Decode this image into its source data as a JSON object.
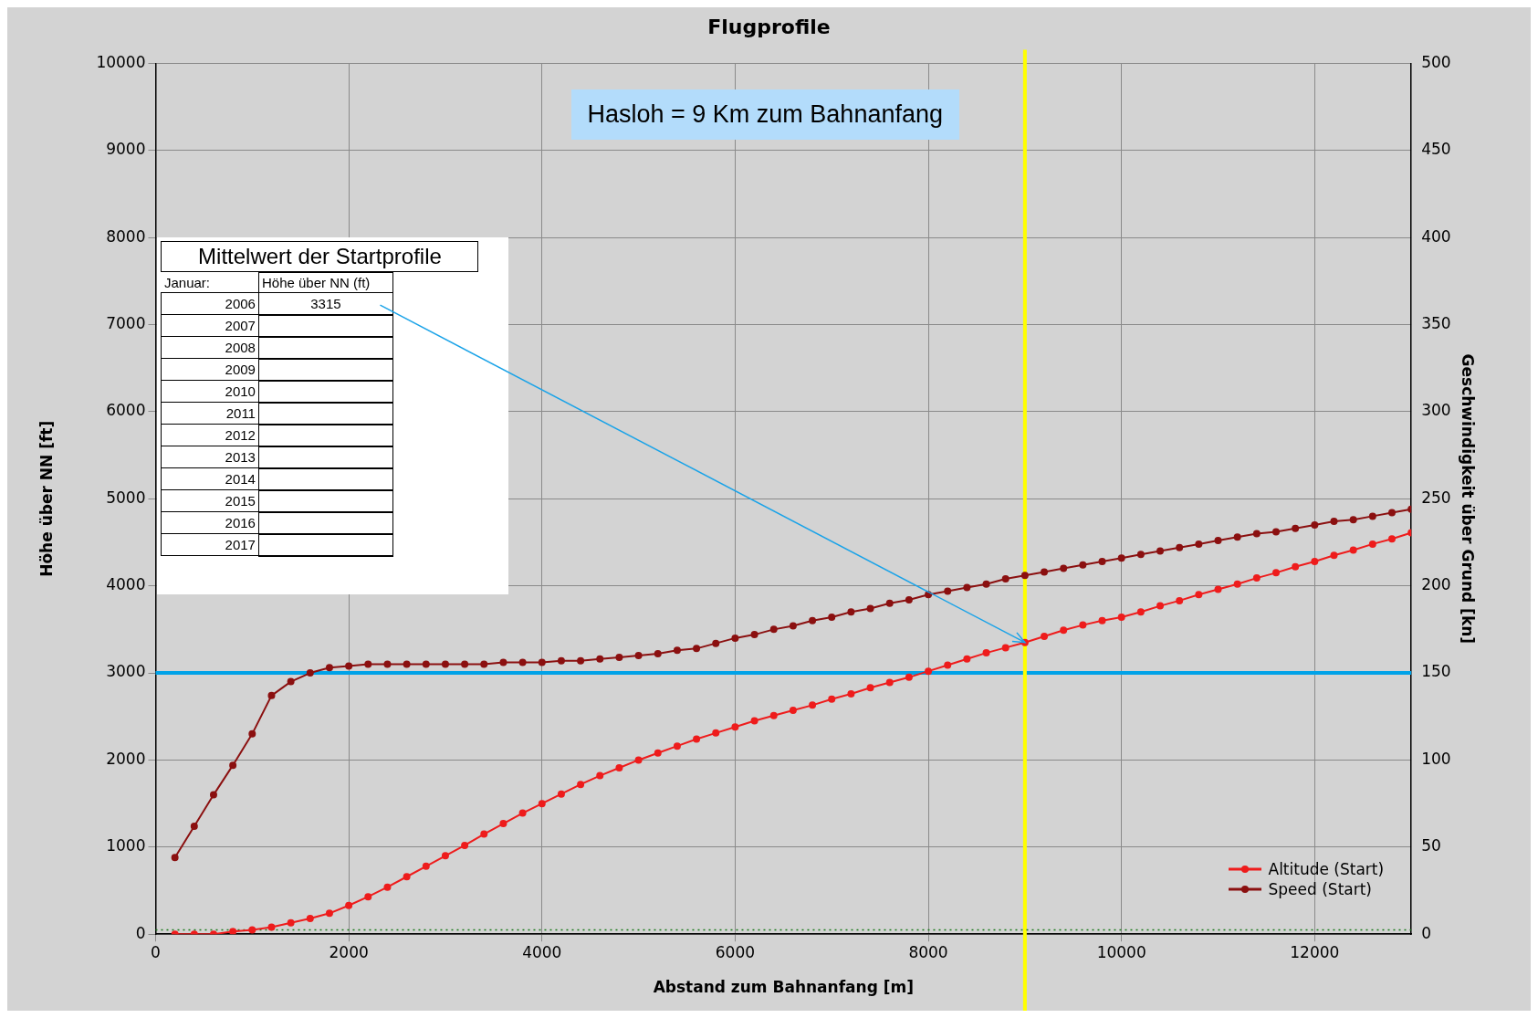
{
  "chart_data": {
    "type": "line",
    "title": "Flugprofile",
    "xlabel": "Abstand zum Bahnanfang [m]",
    "ylabel": "Höhe über NN [ft]",
    "y2label": "Geschwindigkeit über Grund [kn]",
    "xlim": [
      0,
      13000
    ],
    "xticks": [
      0,
      2000,
      4000,
      6000,
      8000,
      10000,
      12000
    ],
    "ylim": [
      0,
      10000
    ],
    "yticks": [
      0,
      1000,
      2000,
      3000,
      4000,
      5000,
      6000,
      7000,
      8000,
      9000,
      10000
    ],
    "y2lim": [
      0,
      500
    ],
    "y2ticks": [
      0,
      50,
      100,
      150,
      200,
      250,
      300,
      350,
      400,
      450,
      500
    ],
    "grid": true,
    "legend": "bottom right",
    "marker": "circle",
    "x": [
      200,
      400,
      600,
      800,
      1000,
      1200,
      1400,
      1600,
      1800,
      2000,
      2200,
      2400,
      2600,
      2800,
      3000,
      3200,
      3400,
      3600,
      3800,
      4000,
      4200,
      4400,
      4600,
      4800,
      5000,
      5200,
      5400,
      5600,
      5800,
      6000,
      6200,
      6400,
      6600,
      6800,
      7000,
      7200,
      7400,
      7600,
      7800,
      8000,
      8200,
      8400,
      8600,
      8800,
      9000,
      9200,
      9400,
      9600,
      9800,
      10000,
      10200,
      10400,
      10600,
      10800,
      11000,
      11200,
      11400,
      11600,
      11800,
      12000,
      12200,
      12400,
      12600,
      12800,
      13000
    ],
    "series": [
      {
        "name": "Altitude (Start)",
        "color": "#ee1c1c",
        "values": [
          0,
          0,
          0,
          30,
          50,
          80,
          130,
          180,
          240,
          330,
          430,
          540,
          660,
          780,
          900,
          1020,
          1150,
          1270,
          1390,
          1500,
          1610,
          1720,
          1820,
          1910,
          2000,
          2080,
          2160,
          2240,
          2310,
          2380,
          2450,
          2510,
          2570,
          2630,
          2700,
          2760,
          2830,
          2890,
          2950,
          3020,
          3090,
          3160,
          3230,
          3290,
          3350,
          3420,
          3490,
          3550,
          3600,
          3640,
          3700,
          3770,
          3830,
          3900,
          3960,
          4020,
          4090,
          4150,
          4220,
          4280,
          4350,
          4410,
          4480,
          4540,
          4610
        ]
      },
      {
        "name": "Speed (Start)",
        "color": "#8b1010",
        "axis": "y2",
        "values": [
          44,
          62,
          80,
          97,
          115,
          137,
          145,
          150,
          153,
          154,
          155,
          155,
          155,
          155,
          155,
          155,
          155,
          156,
          156,
          156,
          157,
          157,
          158,
          159,
          160,
          161,
          163,
          164,
          167,
          170,
          172,
          175,
          177,
          180,
          182,
          185,
          187,
          190,
          192,
          195,
          197,
          199,
          201,
          204,
          206,
          208,
          210,
          212,
          214,
          216,
          218,
          220,
          222,
          224,
          226,
          228,
          230,
          231,
          233,
          235,
          237,
          238,
          240,
          242,
          244
        ]
      }
    ],
    "ref_lines": [
      {
        "axis": "y",
        "value": 3000,
        "color": "#00a2e8"
      },
      {
        "axis": "x",
        "value": 9000,
        "color": "#ffff00"
      },
      {
        "axis": "y",
        "value": 50,
        "color": "#1a7a1a",
        "line_style": "dotted"
      }
    ],
    "annotations": [
      "Hasloh = 9 Km zum Bahnanfang",
      "Mittelwert der Startprofile",
      "Januar:",
      "Höhe über NN (ft)",
      "2006",
      "3315",
      "2007",
      "2008",
      "2009",
      "2010",
      "2011",
      "2012",
      "2013",
      "2014",
      "2015",
      "2016",
      "2017"
    ]
  }
}
